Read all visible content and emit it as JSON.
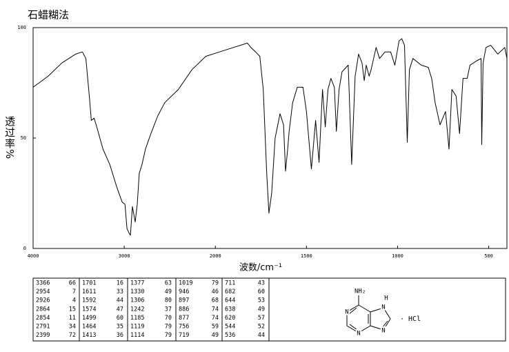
{
  "chart_data": {
    "type": "line",
    "title": "石蜡糊法",
    "x_label": "波数/cm⁻¹",
    "y_label": "透过率%",
    "x_scale": "piecewise",
    "xlim": [
      4000,
      400
    ],
    "xticks": [
      4000,
      3000,
      2000,
      1500,
      1000,
      500
    ],
    "ylim": [
      0,
      100
    ],
    "yticks": [
      0,
      50,
      100
    ],
    "x": [
      4000,
      3835,
      3684,
      3534,
      3459,
      3421,
      3383,
      3361,
      3331,
      3308,
      3233,
      3158,
      3083,
      3023,
      2992,
      2970,
      2947,
      2932,
      2910,
      2880,
      2857,
      2835,
      2805,
      2767,
      2707,
      2632,
      2556,
      2406,
      2256,
      2105,
      1977,
      1901,
      1824,
      1805,
      1779,
      1756,
      1737,
      1718,
      1706,
      1691,
      1672,
      1645,
      1626,
      1615,
      1603,
      1595,
      1576,
      1550,
      1519,
      1500,
      1473,
      1450,
      1431,
      1412,
      1397,
      1382,
      1366,
      1347,
      1336,
      1321,
      1305,
      1271,
      1252,
      1233,
      1214,
      1195,
      1183,
      1172,
      1156,
      1145,
      1118,
      1099,
      1069,
      1038,
      1015,
      992,
      977,
      962,
      947,
      935,
      916,
      870,
      832,
      813,
      794,
      767,
      737,
      718,
      702,
      679,
      660,
      641,
      618,
      603,
      565,
      542,
      538,
      531,
      515,
      489,
      450,
      412,
      400
    ],
    "series": [
      {
        "color": "#000000",
        "values": [
          73,
          78,
          84,
          88,
          89,
          86,
          69,
          58,
          59,
          56,
          45,
          38,
          28,
          21,
          20,
          9,
          7,
          6,
          19,
          12,
          20,
          34,
          38,
          45,
          52,
          60,
          66,
          72,
          81,
          87,
          89,
          91,
          93,
          91,
          89,
          87,
          72,
          34,
          16,
          25,
          50,
          61,
          56,
          35,
          45,
          53,
          66,
          73,
          73,
          62,
          36,
          58,
          39,
          72,
          55,
          72,
          77,
          73,
          53,
          72,
          80,
          83,
          38,
          78,
          88,
          84,
          76,
          83,
          78,
          81,
          91,
          86,
          89,
          89,
          83,
          94,
          95,
          92,
          48,
          81,
          86,
          83,
          82,
          77,
          66,
          56,
          62,
          45,
          72,
          69,
          52,
          77,
          77,
          83,
          85,
          86,
          47,
          84,
          91,
          92,
          88,
          91,
          86
        ]
      }
    ]
  },
  "peak_table": {
    "columns": [
      [
        [
          3366,
          66
        ],
        [
          2954,
          7
        ],
        [
          2926,
          4
        ],
        [
          2864,
          15
        ],
        [
          2854,
          11
        ],
        [
          2791,
          34
        ],
        [
          2399,
          72
        ]
      ],
      [
        [
          1701,
          16
        ],
        [
          1611,
          33
        ],
        [
          1592,
          44
        ],
        [
          1574,
          47
        ],
        [
          1499,
          60
        ],
        [
          1464,
          35
        ],
        [
          1413,
          36
        ]
      ],
      [
        [
          1377,
          63
        ],
        [
          1330,
          49
        ],
        [
          1306,
          80
        ],
        [
          1242,
          37
        ],
        [
          1185,
          70
        ],
        [
          1119,
          79
        ],
        [
          1114,
          79
        ]
      ],
      [
        [
          1019,
          79
        ],
        [
          946,
          46
        ],
        [
          897,
          68
        ],
        [
          886,
          74
        ],
        [
          877,
          74
        ],
        [
          756,
          59
        ],
        [
          719,
          49
        ]
      ],
      [
        [
          711,
          43
        ],
        [
          682,
          60
        ],
        [
          644,
          53
        ],
        [
          638,
          49
        ],
        [
          620,
          57
        ],
        [
          544,
          52
        ],
        [
          536,
          44
        ]
      ]
    ]
  },
  "structure": {
    "substituent": "NH₂",
    "hydrogen": "H",
    "atoms": [
      "N",
      "N",
      "N",
      "N"
    ],
    "salt": "· HCl"
  }
}
